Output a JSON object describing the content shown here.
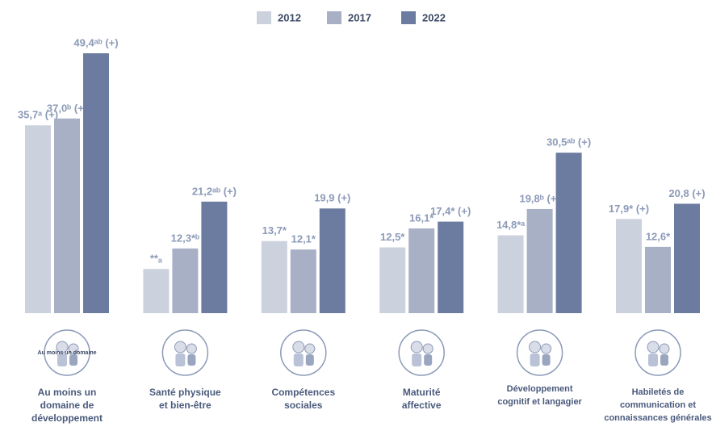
{
  "chart_data": {
    "type": "bar",
    "categories": [
      "Au moins un\ndomaine de\ndéveloppement",
      "Santé physique\net bien-être",
      "Compétences\nsociales",
      "Maturité\naffective",
      "Développement\ncognitif et langagier",
      "Habiletés de\ncommunication et\nconnaissances générales"
    ],
    "icon_text": "Au moins un domaine",
    "series": [
      {
        "name": "2012",
        "color": "#ccd1de",
        "values": [
          35.7,
          8.4,
          13.7,
          12.5,
          14.8,
          17.9
        ],
        "value_labels": [
          "35,7ᵃ (+)",
          "**ₐ",
          "13,7*",
          "12,5*",
          "14,8*ᵃ",
          "17,9* (+)"
        ]
      },
      {
        "name": "2017",
        "color": "#a8b0c6",
        "values": [
          37.0,
          12.3,
          12.1,
          16.1,
          19.8,
          12.6
        ],
        "value_labels": [
          "37,0ᵇ (+)",
          "12,3*ᵇ",
          "12,1*",
          "16,1*",
          "19,8ᵇ (+)",
          "12,6*"
        ]
      },
      {
        "name": "2022",
        "color": "#6c7ca0",
        "values": [
          49.4,
          21.2,
          19.9,
          17.4,
          30.5,
          20.8
        ],
        "value_labels": [
          "49,4ᵃᵇ (+)",
          "21,2ᵃᵇ (+)",
          "19,9 (+)",
          "17,4* (+)",
          "30,5ᵃᵇ (+)",
          "20,8 (+)"
        ]
      }
    ]
  }
}
